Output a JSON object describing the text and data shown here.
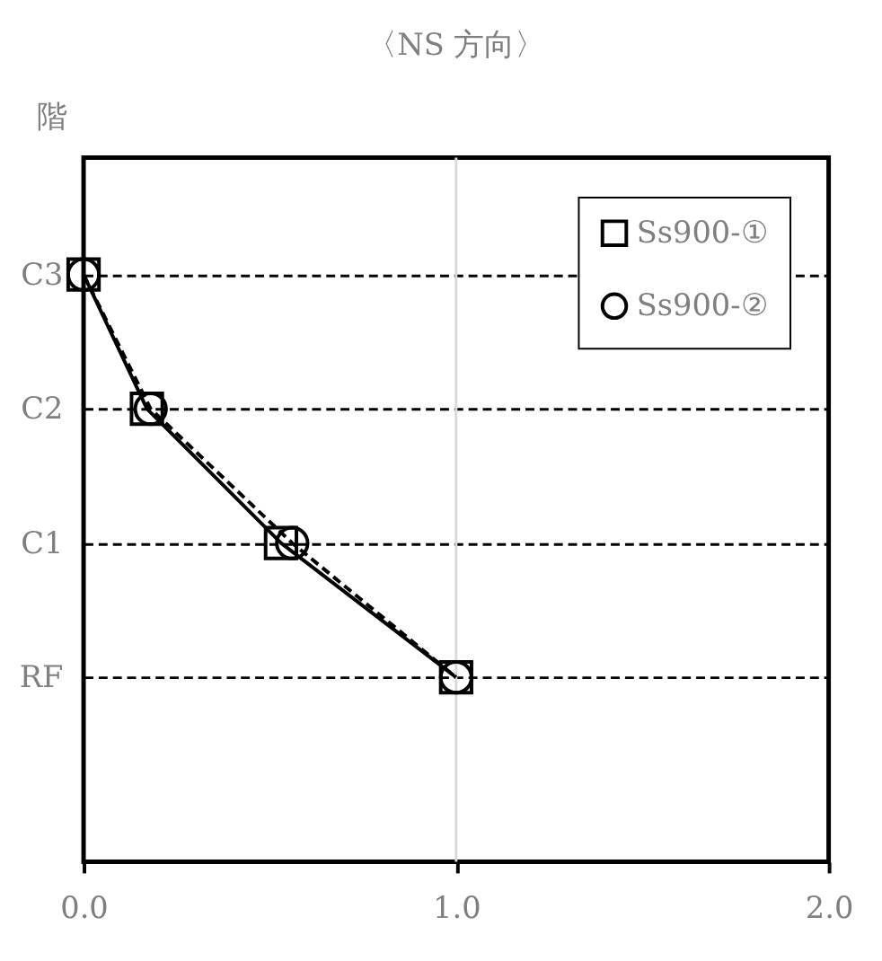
{
  "chart_data": {
    "type": "line",
    "orientation": "horizontal",
    "title": "〈NS 方向〉",
    "ylabel": "階",
    "categories": [
      "C3",
      "C2",
      "C1",
      "RF"
    ],
    "xlim": [
      0,
      2
    ],
    "xticks": [
      {
        "value": 0,
        "label": "0.0"
      },
      {
        "value": 1,
        "label": "1.0"
      },
      {
        "value": 2,
        "label": "2.0"
      }
    ],
    "grid": "y",
    "ref_lines": [
      {
        "axis": "x",
        "value": 1,
        "color": "#d9d9d9"
      }
    ],
    "legend": "top right",
    "series": [
      {
        "name": "Ss900-①",
        "color": "#000000",
        "marker": "square",
        "line_style": "solid",
        "values": [
          0,
          0.17,
          0.53,
          1.0
        ]
      },
      {
        "name": "Ss900-②",
        "color": "#000000",
        "marker": "circle",
        "line_style": "dashed",
        "values": [
          0,
          0.18,
          0.56,
          1.0
        ]
      }
    ]
  }
}
